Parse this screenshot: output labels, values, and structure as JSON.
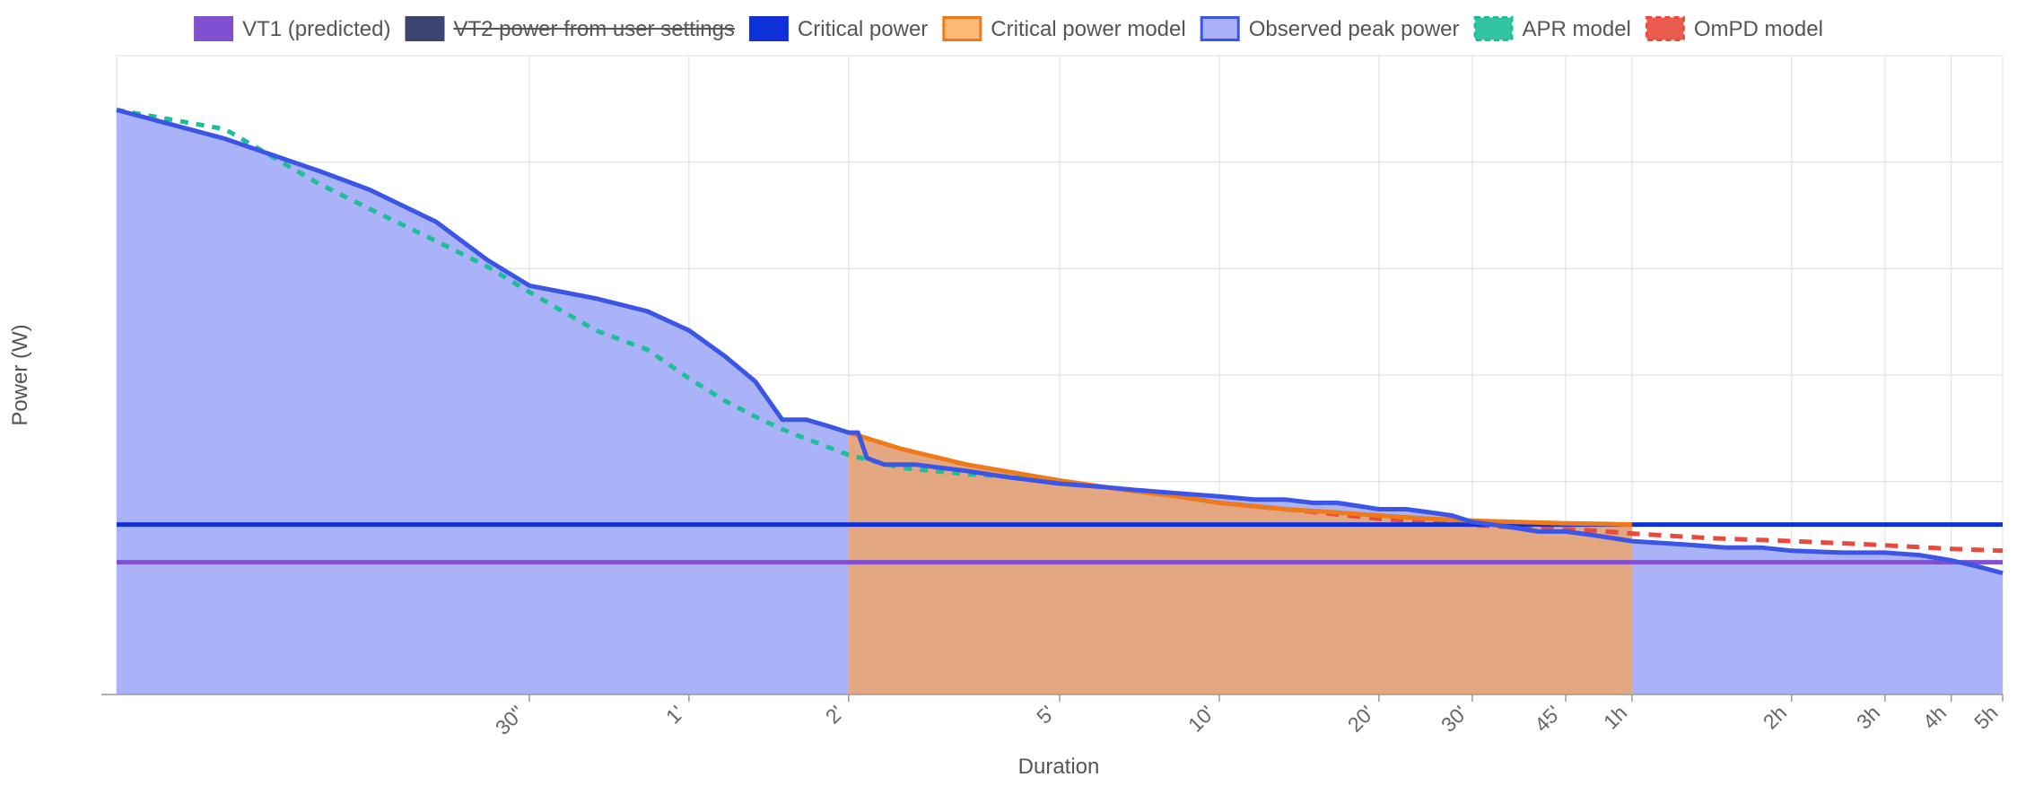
{
  "chart_data": {
    "type": "area",
    "xlabel": "Duration",
    "ylabel": "Power (W)",
    "x_scale": "log",
    "x_unit": "seconds",
    "xlim_seconds": [
      5,
      18000
    ],
    "ylim_relative": [
      0,
      1
    ],
    "grid": true,
    "legend_position": "top",
    "x_ticks": [
      {
        "value": 30,
        "label": "30''"
      },
      {
        "value": 60,
        "label": "1'"
      },
      {
        "value": 120,
        "label": "2'"
      },
      {
        "value": 300,
        "label": "5'"
      },
      {
        "value": 600,
        "label": "10'"
      },
      {
        "value": 1200,
        "label": "20'"
      },
      {
        "value": 1800,
        "label": "30'"
      },
      {
        "value": 2700,
        "label": "45'"
      },
      {
        "value": 3600,
        "label": "1h"
      },
      {
        "value": 7200,
        "label": "2h"
      },
      {
        "value": 10800,
        "label": "3h"
      },
      {
        "value": 14400,
        "label": "4h"
      },
      {
        "value": 18000,
        "label": "5h"
      }
    ],
    "y_gridlines_relative": [
      0.1667,
      0.3333,
      0.5,
      0.6667,
      0.8333,
      1.0
    ],
    "legend": [
      {
        "id": "vt1",
        "label": "VT1 (predicted)",
        "style": "swatch",
        "color": "#8050d0",
        "border": "#8050d0",
        "struck": false
      },
      {
        "id": "vt2",
        "label": "VT2 power from user settings",
        "style": "swatch",
        "color": "#3c4470",
        "border": "#3c4470",
        "struck": true
      },
      {
        "id": "cp",
        "label": "Critical power",
        "style": "swatch",
        "color": "#1030d8",
        "border": "#1030d8",
        "struck": false
      },
      {
        "id": "cpm",
        "label": "Critical power model",
        "style": "swatch",
        "color": "#ffba7a",
        "border": "#ee7a1a",
        "struck": false
      },
      {
        "id": "peak",
        "label": "Observed peak power",
        "style": "swatch",
        "color": "#aab3f8",
        "border": "#3b55e6",
        "struck": false
      },
      {
        "id": "apr",
        "label": "APR model",
        "style": "dashed",
        "color": "#1dbe98",
        "border": "#1dbe98",
        "struck": false
      },
      {
        "id": "ompd",
        "label": "OmPD model",
        "style": "dashed",
        "color": "#e84a3c",
        "border": "#e84a3c",
        "struck": false
      }
    ],
    "series": [
      {
        "name": "Observed peak power",
        "color": "#3b55e6",
        "fill": "#aab3f8",
        "x": [
          5,
          8,
          12,
          15,
          20,
          25,
          30,
          40,
          50,
          60,
          70,
          80,
          90,
          100,
          110,
          120,
          125,
          130,
          140,
          160,
          200,
          240,
          300,
          360,
          420,
          500,
          600,
          700,
          800,
          900,
          1000,
          1100,
          1200,
          1350,
          1500,
          1650,
          1800,
          2000,
          2200,
          2400,
          2700,
          3000,
          3300,
          3600,
          4500,
          5400,
          6300,
          7200,
          9000,
          10800,
          12600,
          14400,
          16200,
          18000
        ],
        "y": [
          0.915,
          0.87,
          0.82,
          0.79,
          0.74,
          0.68,
          0.64,
          0.62,
          0.6,
          0.57,
          0.53,
          0.49,
          0.43,
          0.43,
          0.42,
          0.41,
          0.41,
          0.37,
          0.36,
          0.36,
          0.35,
          0.34,
          0.33,
          0.325,
          0.32,
          0.315,
          0.31,
          0.305,
          0.305,
          0.3,
          0.3,
          0.295,
          0.29,
          0.29,
          0.285,
          0.28,
          0.27,
          0.265,
          0.26,
          0.255,
          0.255,
          0.25,
          0.245,
          0.24,
          0.235,
          0.23,
          0.23,
          0.225,
          0.222,
          0.222,
          0.218,
          0.21,
          0.2,
          0.19
        ]
      },
      {
        "name": "Critical power model",
        "color": "#ee7a1a",
        "fill": "#e3a781",
        "x": [
          120,
          150,
          200,
          300,
          400,
          500,
          600,
          800,
          1000,
          1200,
          1500,
          1800,
          2200,
          2700,
          3200,
          3600
        ],
        "y": [
          0.41,
          0.385,
          0.36,
          0.335,
          0.32,
          0.31,
          0.3,
          0.29,
          0.285,
          0.28,
          0.275,
          0.272,
          0.27,
          0.268,
          0.267,
          0.266
        ]
      },
      {
        "name": "APR model",
        "color": "#1dbe98",
        "x": [
          5,
          8,
          12,
          15,
          20,
          25,
          30,
          40,
          50,
          60,
          70,
          80,
          90,
          100,
          120,
          150,
          200,
          250,
          300
        ],
        "y": [
          0.915,
          0.885,
          0.8,
          0.76,
          0.71,
          0.67,
          0.63,
          0.57,
          0.54,
          0.495,
          0.46,
          0.435,
          0.415,
          0.4,
          0.375,
          0.355,
          0.345,
          0.34,
          0.33
        ]
      },
      {
        "name": "OmPD model",
        "color": "#e84a3c",
        "x": [
          600,
          800,
          1000,
          1200,
          1500,
          1800,
          2400,
          3000,
          3600,
          5000,
          7200,
          10000,
          14400,
          18000
        ],
        "y": [
          0.3,
          0.29,
          0.282,
          0.275,
          0.27,
          0.265,
          0.26,
          0.257,
          0.252,
          0.245,
          0.24,
          0.235,
          0.228,
          0.225
        ]
      },
      {
        "name": "Critical power",
        "color": "#1030d8",
        "x": [
          5,
          18000
        ],
        "y": [
          0.266,
          0.266
        ]
      },
      {
        "name": "VT1 (predicted)",
        "color": "#8050d0",
        "x": [
          5,
          18000
        ],
        "y": [
          0.207,
          0.207
        ]
      }
    ]
  }
}
